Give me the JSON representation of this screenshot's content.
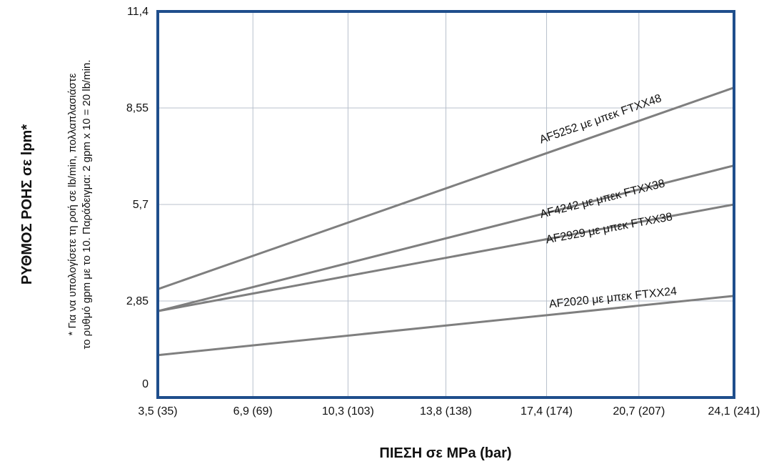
{
  "chart_data": {
    "type": "line",
    "title": "",
    "xlabel": "ΠΙΕΣΗ σε MPa (bar)",
    "ylabel": "ΡΥΘΜΟΣ ΡΟΗΣ σε lpm*",
    "note_lines": [
      "* Για να υπολογίσετε τη ροή σε lb/min, πολλαπλασιάστε",
      "το ρυθμό gpm με το 10. Παράδειγμα: 2 gpm x 10 = 20 lb/min."
    ],
    "x": [
      3.5,
      24.1
    ],
    "xlim": [
      3.5,
      24.1
    ],
    "ylim": [
      0,
      11.4
    ],
    "x_ticks": [
      {
        "value": 3.5,
        "label": "3,5 (35)"
      },
      {
        "value": 6.9,
        "label": "6,9 (69)"
      },
      {
        "value": 10.3,
        "label": "10,3 (103)"
      },
      {
        "value": 13.8,
        "label": "13,8 (138)"
      },
      {
        "value": 17.4,
        "label": "17,4 (174)"
      },
      {
        "value": 20.7,
        "label": "20,7 (207)"
      },
      {
        "value": 24.1,
        "label": "24,1 (241)"
      }
    ],
    "y_ticks": [
      {
        "value": 0,
        "label": "0"
      },
      {
        "value": 2.85,
        "label": "2,85"
      },
      {
        "value": 5.7,
        "label": "5,7"
      },
      {
        "value": 8.55,
        "label": "8,55"
      },
      {
        "value": 11.4,
        "label": "11,4"
      }
    ],
    "grid": true,
    "series": [
      {
        "name": "AF5252 με μπεκ FTXX48",
        "values": [
          3.2,
          9.15
        ],
        "label_at": [
          17.2,
          7.5
        ]
      },
      {
        "name": "AF4242 με μπεκ FTXX38",
        "values": [
          2.55,
          6.85
        ],
        "label_at": [
          17.2,
          5.3
        ]
      },
      {
        "name": "AF2929 με μπεκ FTXX38",
        "values": [
          2.55,
          5.7
        ],
        "label_at": [
          17.4,
          4.55
        ]
      },
      {
        "name": "AF2020 με μπεκ FTXX24",
        "values": [
          1.25,
          3.0
        ],
        "label_at": [
          17.5,
          2.65
        ]
      }
    ],
    "colors": {
      "frame": "#1f4e8c",
      "grid": "#b8c0cc",
      "line": "#7f7f7f",
      "text": "#111111"
    }
  }
}
